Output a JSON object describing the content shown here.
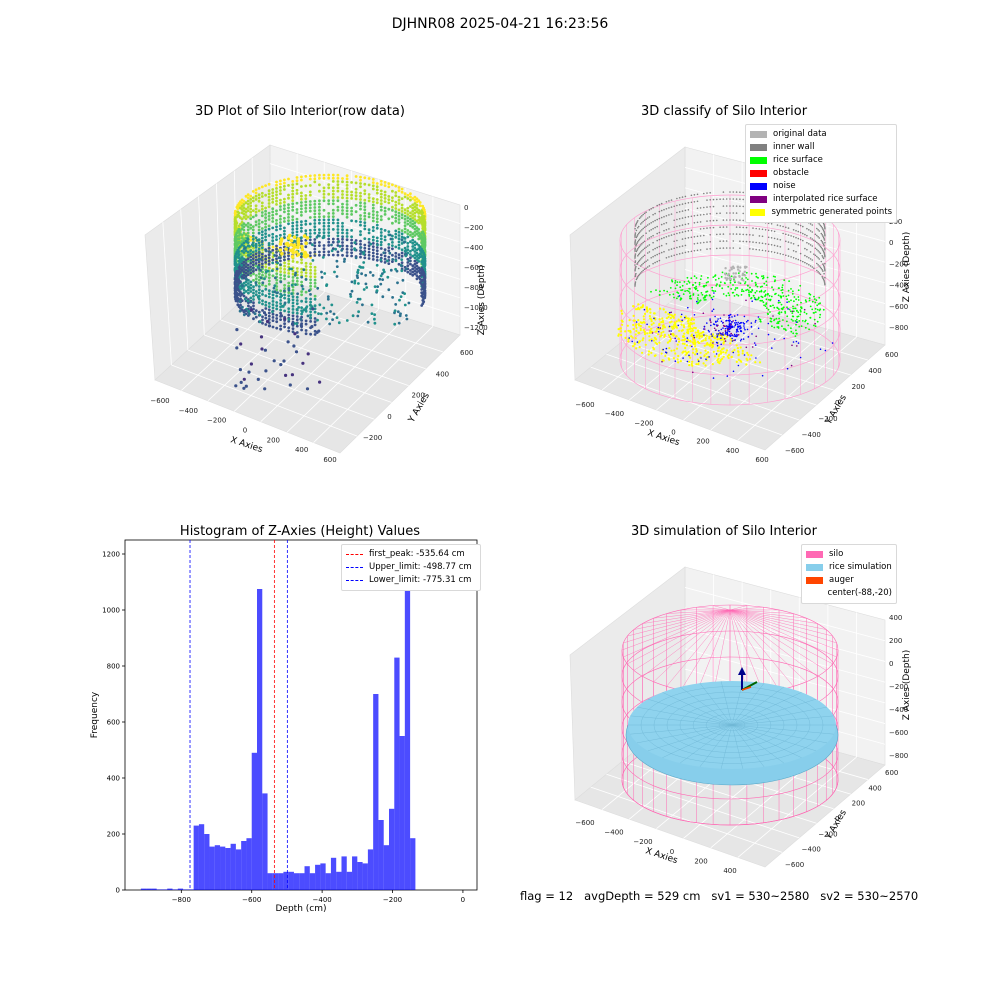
{
  "suptitle": "DJHNR08 2025-04-21 16:23:56",
  "status_line": "flag = 12   avgDepth = 529 cm   sv1 = 530~2580   sv2 = 530~2570",
  "chart_data": [
    {
      "type": "scatter",
      "title": "3D Plot of Silo Interior(row data)",
      "xlabel": "X Axies",
      "ylabel": "Y Axies",
      "zlabel": "Z Axies (Depth)",
      "x_ticks": [
        "−600",
        "−400",
        "−200",
        "0",
        "200",
        "400",
        "600"
      ],
      "y_ticks": [
        "−200",
        "0",
        "200",
        "400",
        "600"
      ],
      "z_ticks": [
        "0",
        "−200",
        "−400",
        "−600",
        "−800",
        "−1000",
        "−1200"
      ],
      "colormap": "viridis"
    },
    {
      "type": "scatter",
      "title": "3D classify of Silo Interior",
      "xlabel": "X Axies",
      "ylabel": "Y Axies",
      "zlabel": "Z Axies (Depth)",
      "x_ticks": [
        "−600",
        "−400",
        "−200",
        "0",
        "200",
        "400",
        "600"
      ],
      "y_ticks": [
        "−600",
        "−400",
        "−200",
        "0",
        "200",
        "400",
        "600"
      ],
      "z_ticks": [
        "200",
        "0",
        "−200",
        "−400",
        "−600",
        "−800"
      ],
      "legend": [
        {
          "label": "original data",
          "color": "#b3b3b3"
        },
        {
          "label": "inner wall",
          "color": "#808080"
        },
        {
          "label": "rice surface",
          "color": "#00ff00"
        },
        {
          "label": "obstacle",
          "color": "#ff0000"
        },
        {
          "label": "noise",
          "color": "#0000ff"
        },
        {
          "label": "interpolated rice surface",
          "color": "#800080"
        },
        {
          "label": "symmetric generated points",
          "color": "#ffff00"
        }
      ]
    },
    {
      "type": "bar",
      "title": "Histogram of Z-Axies (Height) Values",
      "xlabel": "Depth (cm)",
      "ylabel": "Frequency",
      "xlim": [
        -960,
        40
      ],
      "ylim": [
        0,
        1250
      ],
      "x_ticks": [
        -800,
        -600,
        -400,
        -200,
        0
      ],
      "y_ticks": [
        0,
        200,
        400,
        600,
        800,
        1000,
        1200
      ],
      "bar_color": "#0000ff",
      "bin_width": 15,
      "bin_starts": [
        -915,
        -900,
        -885,
        -870,
        -855,
        -840,
        -825,
        -810,
        -795,
        -780,
        -765,
        -750,
        -735,
        -720,
        -705,
        -690,
        -675,
        -660,
        -645,
        -630,
        -615,
        -600,
        -585,
        -570,
        -555,
        -540,
        -525,
        -510,
        -495,
        -480,
        -465,
        -450,
        -435,
        -420,
        -405,
        -390,
        -375,
        -360,
        -345,
        -330,
        -315,
        -300,
        -285,
        -270,
        -255,
        -240,
        -225,
        -210,
        -195,
        -180,
        -165,
        -150,
        -135,
        -120,
        -105,
        -90,
        -75,
        -60,
        -45,
        -30,
        -15
      ],
      "values": [
        5,
        5,
        5,
        2,
        2,
        5,
        2,
        5,
        2,
        2,
        230,
        235,
        200,
        155,
        160,
        155,
        150,
        165,
        145,
        175,
        185,
        490,
        1075,
        345,
        60,
        60,
        60,
        65,
        65,
        60,
        60,
        85,
        60,
        90,
        95,
        60,
        115,
        65,
        120,
        65,
        120,
        100,
        95,
        145,
        700,
        250,
        160,
        290,
        830,
        550,
        1180,
        185,
        0,
        0,
        0,
        0,
        0,
        0,
        0,
        0,
        0
      ],
      "vlines": [
        {
          "label": "first_peak: -535.64 cm",
          "x": -535.64,
          "color": "#ff0000"
        },
        {
          "label": "Upper_limit: -498.77 cm",
          "x": -498.77,
          "color": "#0000ff"
        },
        {
          "label": "Lower_limit: -775.31 cm",
          "x": -775.31,
          "color": "#0000ff"
        }
      ]
    },
    {
      "type": "scatter",
      "title": "3D simulation of Silo Interior",
      "xlabel": "X Axies",
      "ylabel": "Y Axies",
      "zlabel": "Z Axies (Depth)",
      "x_ticks": [
        "−600",
        "−400",
        "−200",
        "0",
        "200",
        "400"
      ],
      "y_ticks": [
        "−600",
        "−400",
        "−200",
        "0",
        "200",
        "400",
        "600"
      ],
      "z_ticks": [
        "400",
        "200",
        "0",
        "−200",
        "−400",
        "−600",
        "−800"
      ],
      "legend": [
        {
          "label": "silo",
          "color": "#ff69b4"
        },
        {
          "label": "rice simulation",
          "color": "#87ceeb"
        },
        {
          "label": "auger",
          "color": "#ff4500"
        },
        {
          "label": "center(-88,-20)",
          "color": ""
        }
      ]
    }
  ]
}
